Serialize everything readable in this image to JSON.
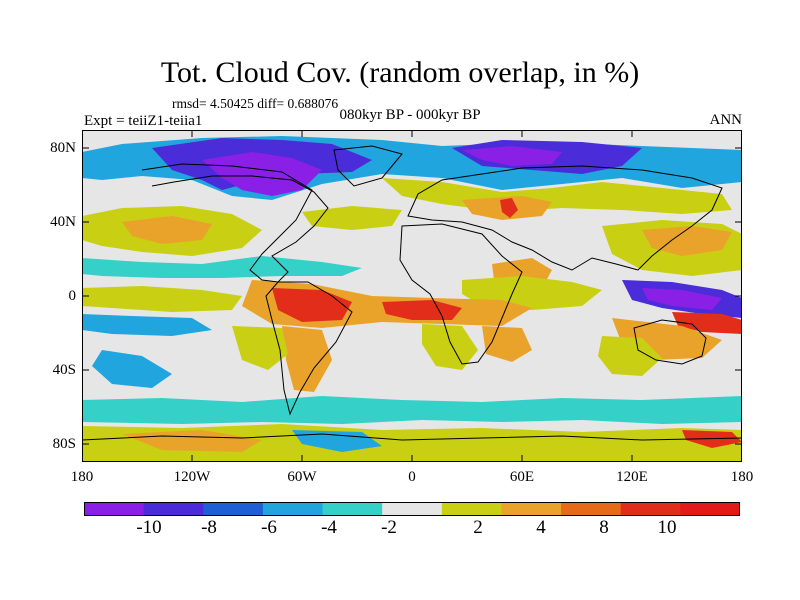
{
  "title": "Tot. Cloud Cov. (random overlap, in %)",
  "stats": "rmsd= 4.50425 diff= 0.688076",
  "experiment": "Expt = teiiZ1-teiia1",
  "period": "080kyr BP - 000kyr BP",
  "season": "ANN",
  "y_ticks": [
    "80N",
    "40N",
    "0",
    "40S",
    "80S"
  ],
  "x_ticks": [
    "180",
    "120W",
    "60W",
    "0",
    "60E",
    "120E",
    "180"
  ],
  "colorbar": {
    "labels": [
      "-10",
      "-8",
      "-6",
      "-4",
      "-2",
      "2",
      "4",
      "8",
      "10"
    ],
    "colors": [
      "#8a1fe6",
      "#4a2cd9",
      "#1f5fd6",
      "#21a5df",
      "#35d0c8",
      "#e6e6e6",
      "#c9cf12",
      "#e9a32a",
      "#e66a17",
      "#e32d1b",
      "#e31a1a"
    ]
  }
}
